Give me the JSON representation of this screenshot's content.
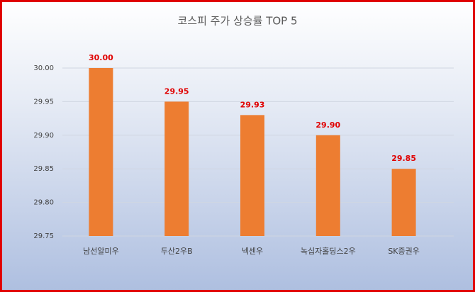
{
  "chart_data": {
    "type": "bar",
    "title": "코스피 주가 상승률 TOP 5",
    "categories": [
      "남선알미우",
      "두산2우B",
      "넥센우",
      "녹십자홀딩스2우",
      "SK증권우"
    ],
    "values": [
      30.0,
      29.95,
      29.93,
      29.9,
      29.85
    ],
    "value_labels": [
      "30.00",
      "29.95",
      "29.93",
      "29.90",
      "29.85"
    ],
    "color": "#ed7d31",
    "value_label_color": "#e00000",
    "ylim": [
      29.75,
      30.0
    ],
    "yticks": [
      29.75,
      {
        "value": 29.8,
        "label": "29.80"
      },
      29.85,
      {
        "value": 29.9,
        "label": "29.90"
      },
      29.95,
      {
        "value": 30,
        "label": "30.00"
      }
    ],
    "grid": true
  }
}
